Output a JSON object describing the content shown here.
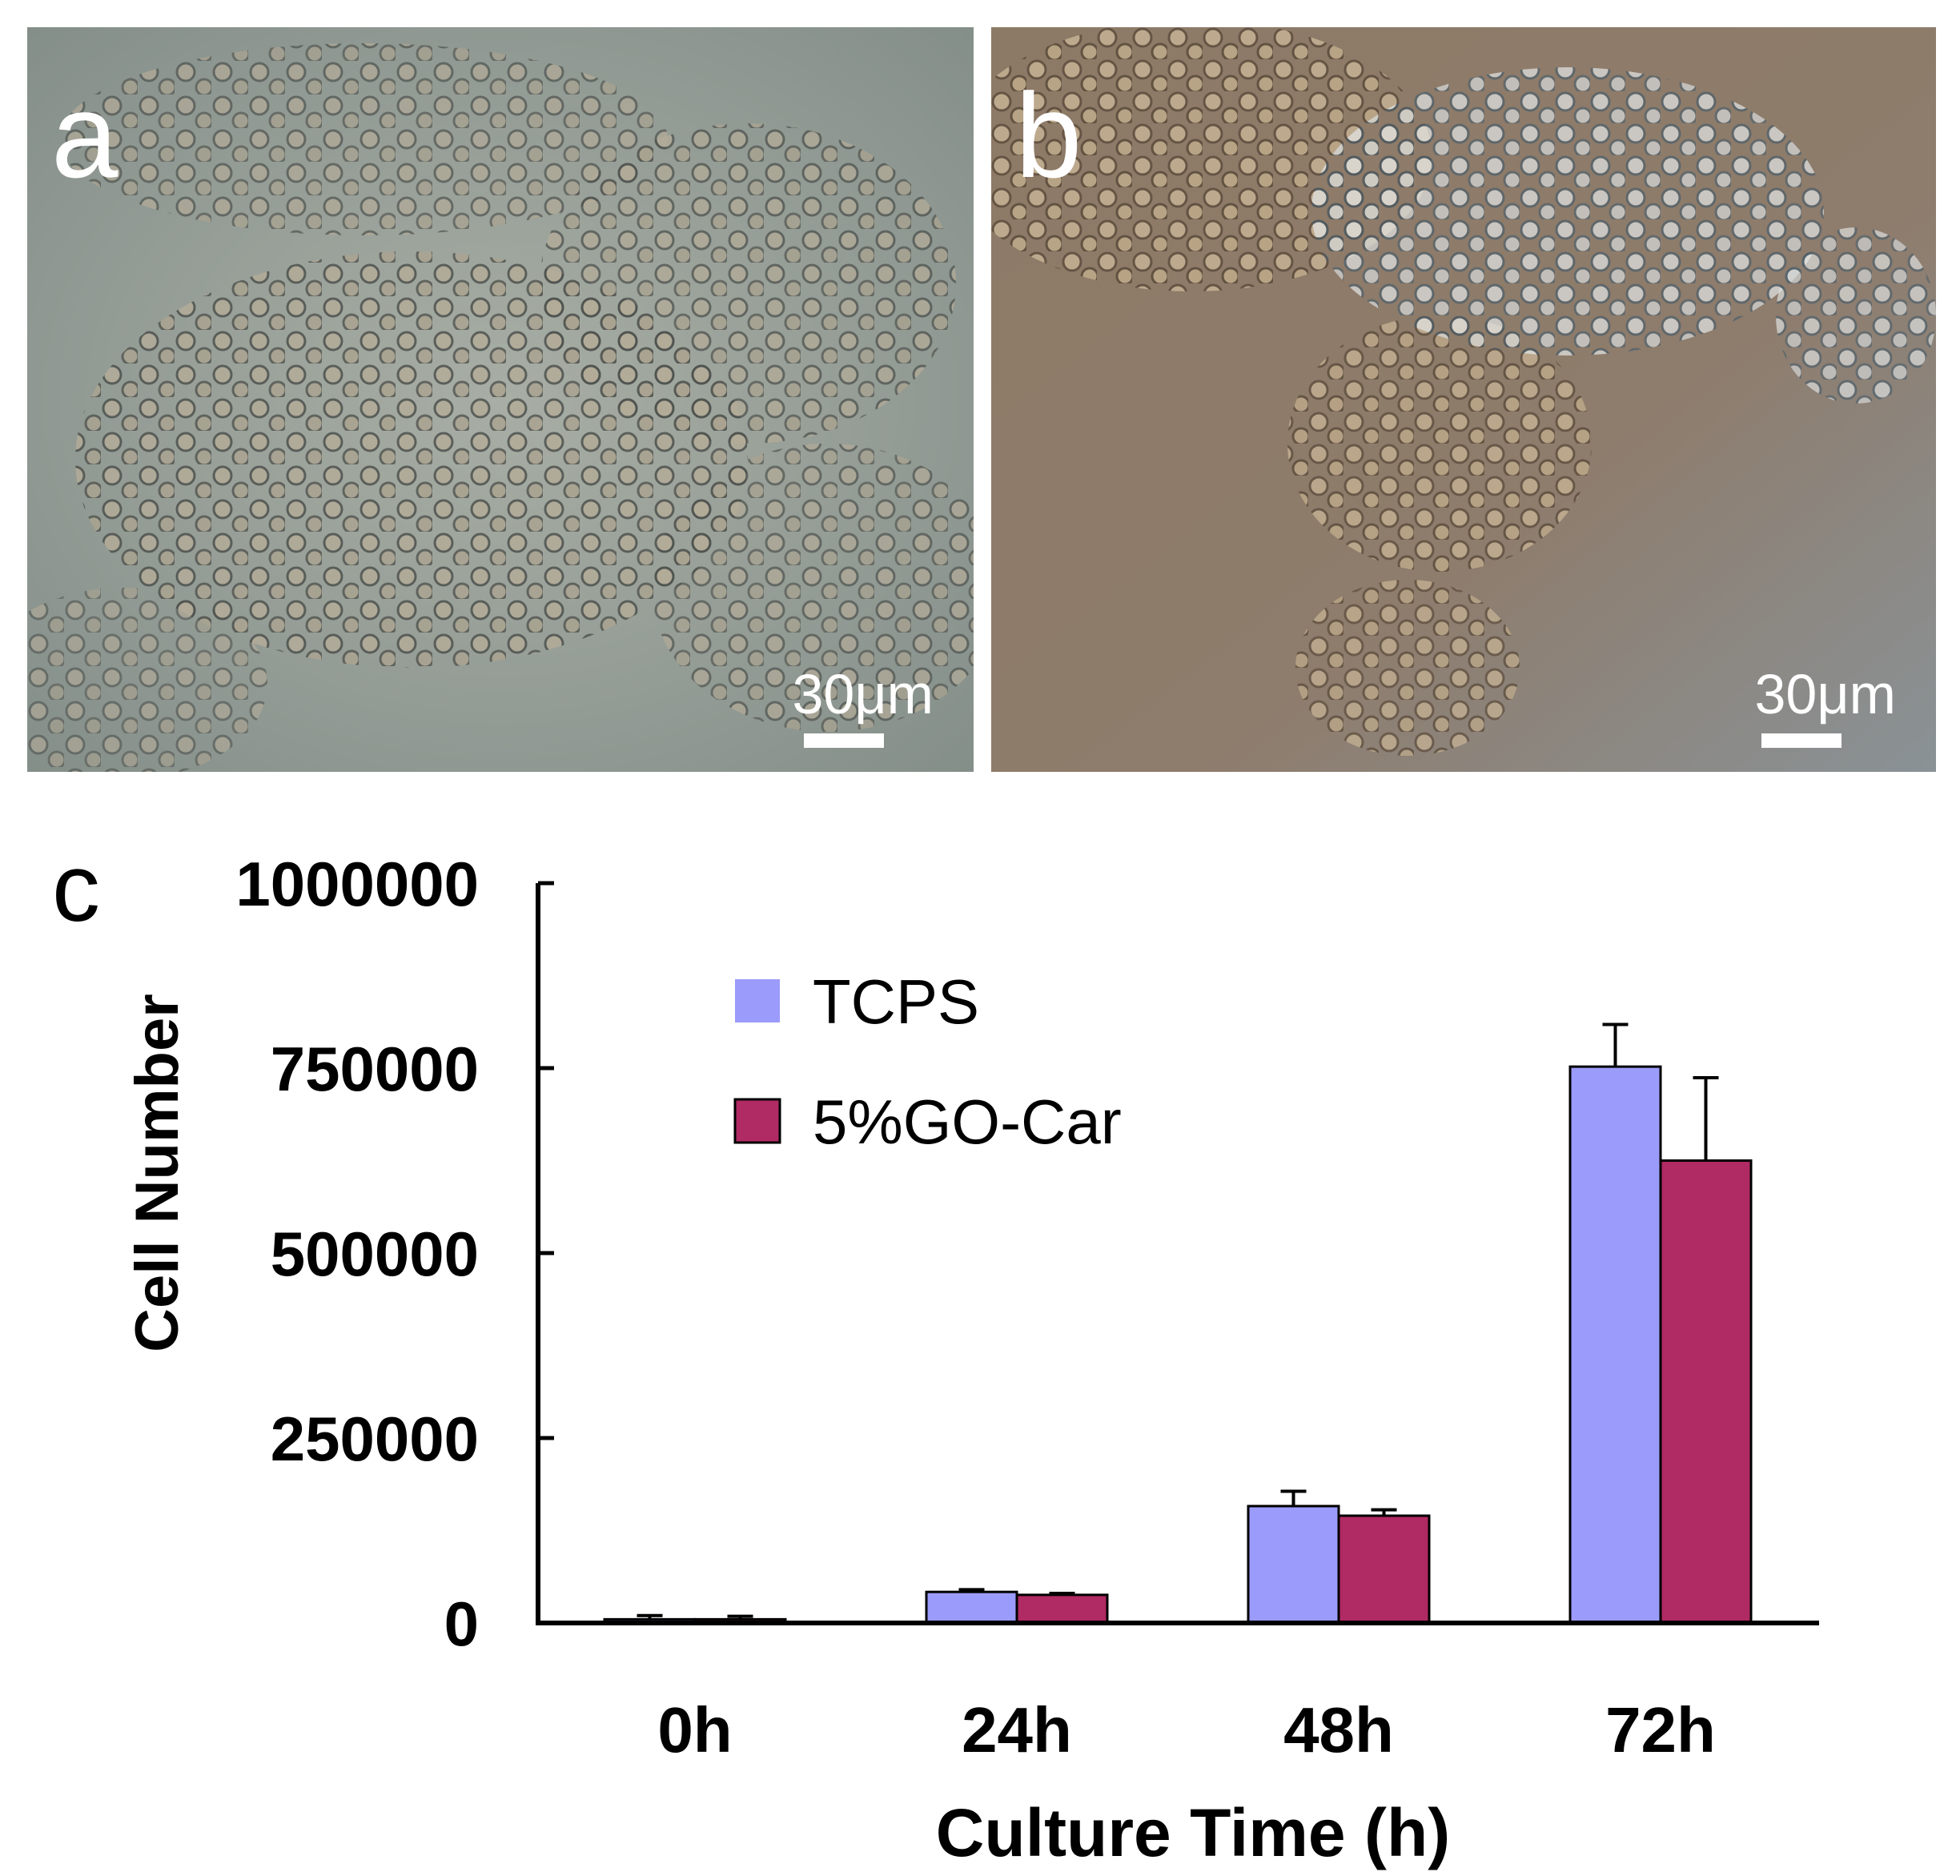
{
  "panels": {
    "a": {
      "letter": "a",
      "scale_label": "30μm"
    },
    "b": {
      "letter": "b",
      "scale_label": "30μm"
    }
  },
  "chart_data": {
    "type": "bar",
    "panel_letter": "c",
    "categories": [
      "0h",
      "24h",
      "48h",
      "72h"
    ],
    "series": [
      {
        "name": "TCPS",
        "color": "#9b9bfb",
        "values": [
          5000,
          42000,
          158000,
          752000
        ],
        "errors": [
          5000,
          3000,
          20000,
          57000
        ]
      },
      {
        "name": "5%GO-Car",
        "color": "#b02a63",
        "values": [
          5000,
          38000,
          145000,
          625000
        ],
        "errors": [
          4000,
          2000,
          8000,
          112000
        ]
      }
    ],
    "xlabel": "Culture Time (h)",
    "ylabel": "Cell Number",
    "ylim": [
      0,
      1000000
    ],
    "yticks": [
      0,
      250000,
      500000,
      750000,
      1000000
    ],
    "ytick_labels": [
      "0",
      "250000",
      "500000",
      "750000",
      "1000000"
    ],
    "legend_position": "top-left",
    "grid": false
  }
}
